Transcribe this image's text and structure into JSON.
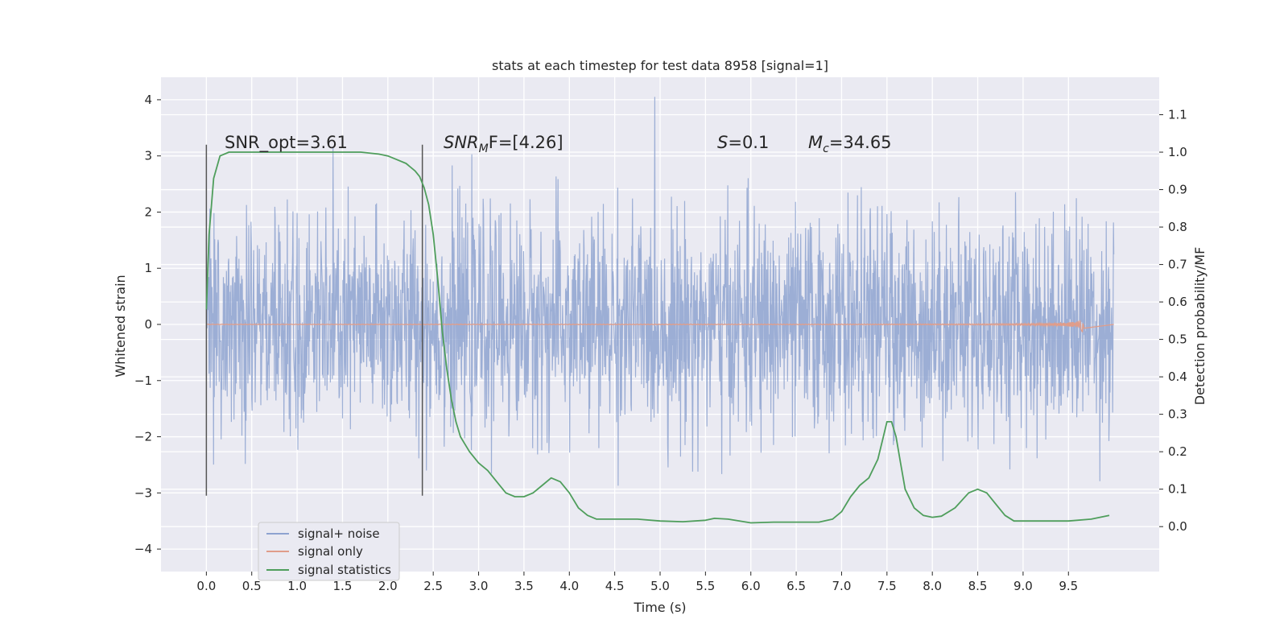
{
  "chart_data": {
    "type": "line",
    "title": "stats at each timestep for test data 8958 [signal=1]",
    "xlabel": "Time (s)",
    "ylabel": "Whitened strain",
    "y2label": "Detection probability/MF",
    "xlim": [
      -0.5,
      10.5
    ],
    "ylim": [
      -4.4,
      4.4
    ],
    "y2lim": [
      -0.12,
      1.2
    ],
    "x_ticks": [
      "0.0",
      "0.5",
      "1.0",
      "1.5",
      "2.0",
      "2.5",
      "3.0",
      "3.5",
      "4.0",
      "4.5",
      "5.0",
      "5.5",
      "6.0",
      "6.5",
      "7.0",
      "7.5",
      "8.0",
      "8.5",
      "9.0",
      "9.5"
    ],
    "y_ticks": [
      "4",
      "3",
      "2",
      "1",
      "0",
      "−1",
      "−2",
      "−3",
      "−4"
    ],
    "y2_ticks": [
      "1.1",
      "1.0",
      "0.9",
      "0.8",
      "0.7",
      "0.6",
      "0.5",
      "0.4",
      "0.3",
      "0.2",
      "0.1",
      "0.0"
    ],
    "grid": true,
    "legend_position": "lower-left",
    "vlines": [
      0.0,
      2.38
    ],
    "annotations": {
      "snr_opt": "SNR_opt=3.61",
      "snr_mf_italic": "SNR",
      "snr_mf_sub": "M",
      "snr_mf_rest": "F=[4.26]",
      "s_italic": "S",
      "s_rest": "=0.1",
      "mc_italic": "M",
      "mc_sub": "c",
      "mc_rest": "=34.65"
    },
    "series": [
      {
        "name": "signal+ noise",
        "color": "#8ea3d0",
        "x_range": [
          0.0,
          10.0
        ],
        "envelope_note": "dense noise band approx ±1.3, spikes to about ±3.5",
        "y_max": 4.05,
        "y_min": -3.7
      },
      {
        "name": "signal only",
        "color": "#e09d8a",
        "x_range": [
          0.0,
          9.67
        ],
        "y_max": 0.97,
        "y_min": -0.97
      },
      {
        "name": "signal statistics",
        "color": "#4f9e5c",
        "x": [
          0.0,
          0.03,
          0.08,
          0.15,
          0.25,
          0.5,
          1.0,
          1.5,
          1.7,
          1.9,
          2.0,
          2.1,
          2.2,
          2.3,
          2.35,
          2.4,
          2.45,
          2.5,
          2.55,
          2.6,
          2.65,
          2.7,
          2.75,
          2.8,
          2.85,
          2.9,
          3.0,
          3.1,
          3.2,
          3.3,
          3.4,
          3.5,
          3.6,
          3.7,
          3.8,
          3.9,
          4.0,
          4.1,
          4.2,
          4.3,
          4.4,
          4.5,
          4.75,
          5.0,
          5.25,
          5.5,
          5.6,
          5.75,
          6.0,
          6.25,
          6.5,
          6.75,
          6.9,
          7.0,
          7.1,
          7.2,
          7.3,
          7.4,
          7.45,
          7.5,
          7.55,
          7.6,
          7.65,
          7.7,
          7.8,
          7.9,
          8.0,
          8.1,
          8.25,
          8.4,
          8.5,
          8.6,
          8.7,
          8.8,
          8.9,
          9.0,
          9.25,
          9.5,
          9.75,
          9.95
        ],
        "y": [
          0.58,
          0.78,
          0.93,
          0.99,
          1.0,
          1.0,
          1.0,
          1.0,
          1.0,
          0.995,
          0.99,
          0.98,
          0.97,
          0.95,
          0.935,
          0.905,
          0.86,
          0.78,
          0.66,
          0.52,
          0.42,
          0.34,
          0.28,
          0.24,
          0.22,
          0.2,
          0.17,
          0.15,
          0.12,
          0.09,
          0.08,
          0.08,
          0.09,
          0.11,
          0.13,
          0.12,
          0.09,
          0.05,
          0.03,
          0.02,
          0.02,
          0.02,
          0.02,
          0.015,
          0.013,
          0.017,
          0.022,
          0.02,
          0.01,
          0.012,
          0.012,
          0.012,
          0.02,
          0.04,
          0.08,
          0.11,
          0.13,
          0.18,
          0.23,
          0.28,
          0.28,
          0.24,
          0.17,
          0.1,
          0.05,
          0.03,
          0.025,
          0.028,
          0.05,
          0.09,
          0.1,
          0.09,
          0.06,
          0.03,
          0.015,
          0.015,
          0.015,
          0.015,
          0.02,
          0.03
        ]
      }
    ]
  }
}
